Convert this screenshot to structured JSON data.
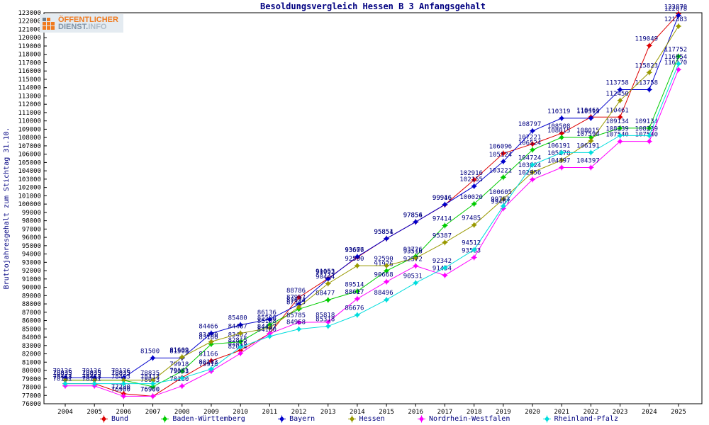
{
  "page_title": "Besoldungsvergleich Hessen B 3 Anfangsgehalt",
  "logo": {
    "part1": "ÖFFENTLICHER",
    "part2": "DIENST.",
    "part3": "INFO",
    "orange": "#f07a1e",
    "gray": "#6d7d8b"
  },
  "axis": {
    "label_color": "#000000",
    "line_color": "#000000",
    "data_label_color": "#000080"
  },
  "chart_data": {
    "type": "line",
    "title": "Besoldungsvergleich Hessen B 3 Anfangsgehalt",
    "xlabel": "",
    "ylabel": "Bruttojahresgehalt zum Stichtag 31.10.",
    "ylim": [
      76000,
      123000
    ],
    "ytick_step": 1000,
    "grid": false,
    "legend_position": "bottom",
    "categories": [
      "2004",
      "2005",
      "2006",
      "2007",
      "2008",
      "2009",
      "2010",
      "2011",
      "2012",
      "2013",
      "2014",
      "2015",
      "2016",
      "2017",
      "2018",
      "2019",
      "2020",
      "2021",
      "2022",
      "2023",
      "2024",
      "2025"
    ],
    "series": [
      {
        "name": "Bund",
        "color": "#dd0000",
        "values": [
          78413,
          78413,
          77200,
          76900,
          79141,
          81166,
          82416,
          84437,
          88786,
          91053,
          93607,
          95854,
          97854,
          99916,
          102916,
          106096,
          107221,
          108508,
          110461,
          110461,
          119049,
          122870
        ]
      },
      {
        "name": "Baden-Württemberg",
        "color": "#00cc00",
        "values": [
          78835,
          78835,
          78835,
          78043,
          79918,
          83160,
          83452,
          85508,
          87375,
          88477,
          89514,
          91976,
          93726,
          97414,
          100020,
          103221,
          106524,
          108015,
          108015,
          109134,
          109134,
          117752
        ]
      },
      {
        "name": "Bayern",
        "color": "#0000cc",
        "values": [
          79126,
          79126,
          79126,
          81500,
          81508,
          84466,
          85480,
          86136,
          87957,
          90992,
          93676,
          95851,
          97856,
          99946,
          102155,
          105124,
          108797,
          110319,
          110319,
          113758,
          113758,
          122678
        ]
      },
      {
        "name": "Hessen",
        "color": "#999900",
        "values": [
          78835,
          78835,
          78835,
          78835,
          81609,
          83460,
          84467,
          85108,
          87624,
          90444,
          92590,
          92590,
          93516,
          95387,
          97485,
          100605,
          103824,
          105278,
          107594,
          112450,
          115823,
          121383
        ]
      },
      {
        "name": "Nordrhein-Westfalen",
        "color": "#ff00ff",
        "values": [
          78151,
          78151,
          76900,
          76900,
          78130,
          79918,
          82054,
          84437,
          85785,
          85818,
          88617,
          90668,
          92572,
          91434,
          93583,
          99467,
          102956,
          104397,
          104397,
          107540,
          107540,
          116170
        ]
      },
      {
        "name": "Rheinland-Pfalz",
        "color": "#00dddd",
        "values": [
          78413,
          78413,
          78413,
          78413,
          79083,
          80183,
          82815,
          84100,
          84968,
          85318,
          86676,
          88496,
          90531,
          92342,
          94512,
          99763,
          104724,
          106191,
          106191,
          108239,
          108239,
          116854
        ]
      }
    ]
  }
}
